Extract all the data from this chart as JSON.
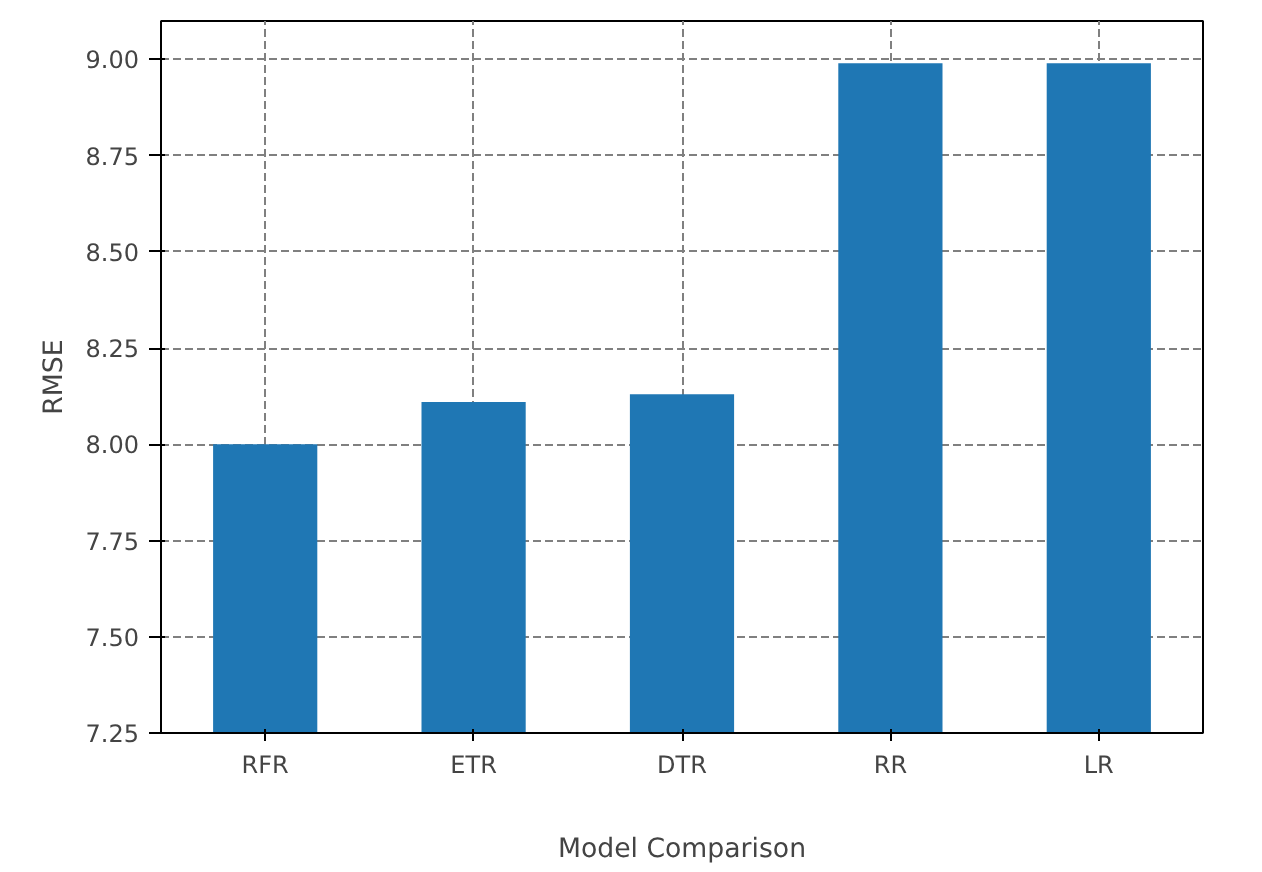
{
  "chart_data": {
    "type": "bar",
    "xlabel": "Model Comparison",
    "ylabel": "RMSE",
    "categories": [
      "RFR",
      "ETR",
      "DTR",
      "RR",
      "LR"
    ],
    "values": [
      8.0,
      8.11,
      8.13,
      8.99,
      8.99
    ],
    "color": "#1f77b4",
    "ylim": [
      7.25,
      9.1
    ],
    "yticks": [
      7.25,
      {
        "value": 7.5,
        "label": "7.50"
      },
      7.75,
      {
        "value": 8,
        "label": "8.00"
      },
      8.25,
      {
        "value": 8.5,
        "label": "8.50"
      },
      8.75,
      {
        "value": 9,
        "label": "9.00"
      }
    ],
    "grid": true
  }
}
